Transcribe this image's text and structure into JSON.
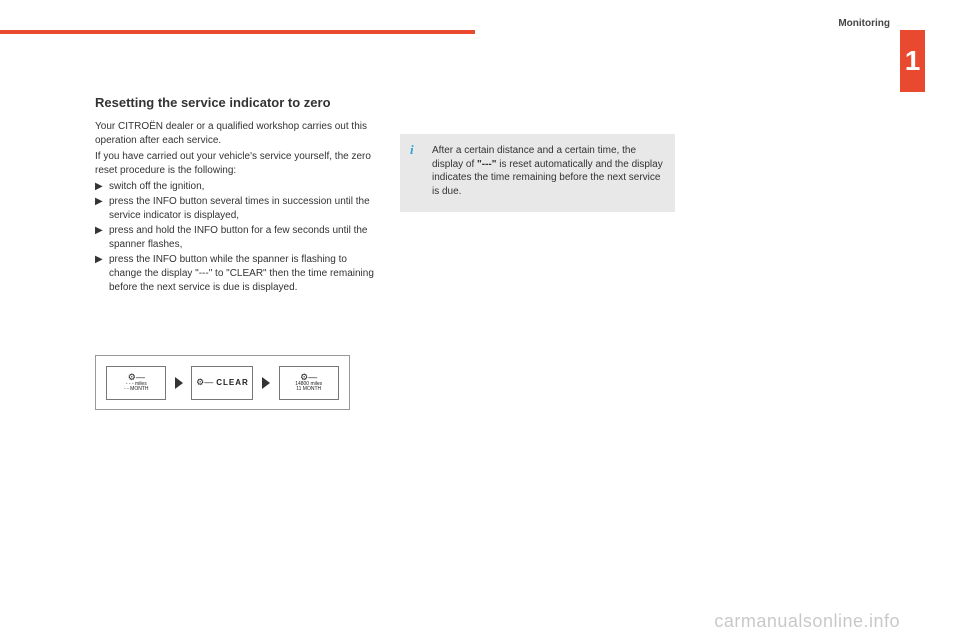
{
  "header": {
    "section_label": "Monitoring",
    "chapter_number": "1"
  },
  "colors": {
    "accent": "#e8492f",
    "info_bg": "#e8e8e8",
    "info_i": "#2aa4d8",
    "text": "#333333"
  },
  "main": {
    "title": "Resetting the service indicator to zero",
    "intro": "Your CITROËN dealer or a qualified workshop carries out this operation after each service.",
    "intro2": "If you have carried out your vehicle's service yourself, the zero reset procedure is the following:",
    "steps": [
      "switch off the ignition,",
      "press the INFO button several times in succession until the service indicator is displayed,",
      "press and hold the INFO button for a few seconds until the spanner flashes,",
      "press the INFO button while the spanner is flashing to change the display \"---\" to \"CLEAR\" then the time remaining before the next service is due is displayed."
    ],
    "step_marker": "▶"
  },
  "info": {
    "icon": "i",
    "text_before": "After a certain distance and a certain time, the display of ",
    "bold": "\"---\"",
    "text_after": " is reset automatically and the display indicates the time remaining before the next service is due."
  },
  "diagram": {
    "panel1": {
      "wrench": "⚙—",
      "line1": "- - -  miles",
      "line2": "- -  MONTH"
    },
    "panel2": {
      "wrench": "⚙—",
      "label": "CLEAR"
    },
    "panel3": {
      "wrench": "⚙—",
      "line1": "14800 miles",
      "line2": "11  MONTH"
    }
  },
  "watermark": "carmanualsonline.info"
}
